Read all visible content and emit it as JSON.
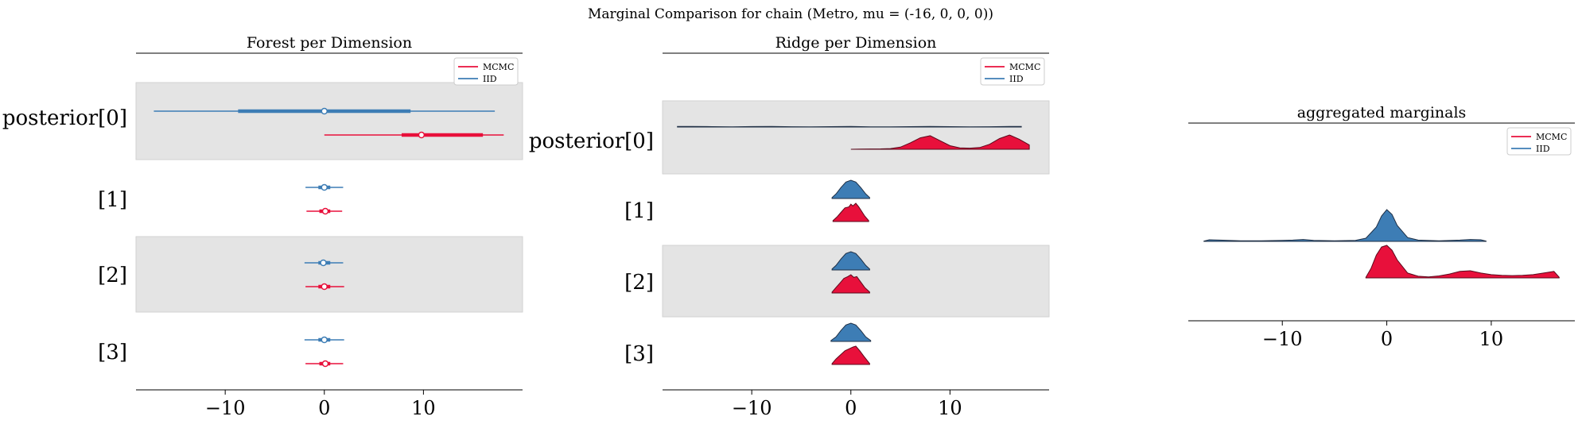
{
  "suptitle": "Marginal Comparison for chain (Metro, mu = (-16, 0, 0, 0))",
  "colors": {
    "mcmc": "#e8103b",
    "iid": "#3d7db5",
    "band": "#e4e4e4",
    "axis": "#000000"
  },
  "chart_data": [
    {
      "type": "forest",
      "title": "Forest per Dimension",
      "xlim": [
        -19,
        20
      ],
      "xticks": [
        -10,
        0,
        10
      ],
      "xtick_labels": [
        "−10",
        "0",
        "10"
      ],
      "legend": {
        "placement": "top-right",
        "entries": [
          "MCMC",
          "IID"
        ]
      },
      "dimensions": [
        {
          "label": "posterior[0]",
          "shaded": true,
          "iid": {
            "lo": -17.2,
            "q25": -8.7,
            "median": 0.0,
            "q75": 8.7,
            "hi": 17.2
          },
          "mcmc": {
            "lo": 0.0,
            "q25": 7.8,
            "median": 9.8,
            "q75": 16.0,
            "hi": 18.1
          }
        },
        {
          "label": "[1]",
          "shaded": false,
          "iid": {
            "lo": -1.9,
            "q25": -0.6,
            "median": 0.0,
            "q75": 0.6,
            "hi": 1.9
          },
          "mcmc": {
            "lo": -1.8,
            "q25": -0.5,
            "median": 0.1,
            "q75": 0.6,
            "hi": 1.8
          }
        },
        {
          "label": "[2]",
          "shaded": true,
          "iid": {
            "lo": -2.0,
            "q25": -0.6,
            "median": -0.1,
            "q75": 0.6,
            "hi": 1.9
          },
          "mcmc": {
            "lo": -1.9,
            "q25": -0.6,
            "median": 0.0,
            "q75": 0.6,
            "hi": 2.0
          }
        },
        {
          "label": "[3]",
          "shaded": false,
          "iid": {
            "lo": -2.0,
            "q25": -0.6,
            "median": 0.0,
            "q75": 0.6,
            "hi": 2.0
          },
          "mcmc": {
            "lo": -1.9,
            "q25": -0.5,
            "median": 0.1,
            "q75": 0.6,
            "hi": 1.9
          }
        }
      ]
    },
    {
      "type": "ridge",
      "title": "Ridge per Dimension",
      "xlim": [
        -19,
        20
      ],
      "xticks": [
        -10,
        0,
        10
      ],
      "xtick_labels": [
        "−10",
        "0",
        "10"
      ],
      "legend": {
        "placement": "top-right",
        "entries": [
          "MCMC",
          "IID"
        ]
      },
      "dimensions": [
        {
          "label": "posterior[0]",
          "shaded": true,
          "iid": {
            "x": [
              -17.5,
              -16,
              -14,
              -12,
              -10,
              -8,
              -6,
              -4,
              -2,
              0,
              2,
              4,
              6,
              8,
              10,
              12,
              14,
              16,
              17.2
            ],
            "d": [
              0.13,
              0.16,
              0.1,
              0.06,
              0.11,
              0.16,
              0.08,
              0.05,
              0.1,
              0.14,
              0.07,
              0.06,
              0.1,
              0.15,
              0.1,
              0.05,
              0.08,
              0.16,
              0.14
            ]
          },
          "mcmc": {
            "x": [
              0,
              1,
              2,
              3,
              4,
              5,
              6,
              7,
              8,
              9,
              10,
              11,
              12,
              13,
              14,
              15,
              16,
              17,
              18
            ],
            "d": [
              0,
              0.01,
              0.02,
              0.03,
              0.05,
              0.15,
              0.45,
              0.8,
              0.95,
              0.6,
              0.25,
              0.1,
              0.08,
              0.12,
              0.35,
              0.75,
              1.0,
              0.7,
              0.3
            ]
          }
        },
        {
          "label": "[1]",
          "shaded": false,
          "iid": {
            "x": [
              -1.9,
              -1.5,
              -1,
              -0.5,
              0,
              0.5,
              1,
              1.5,
              1.9
            ],
            "d": [
              0.05,
              0.25,
              0.6,
              0.9,
              1.0,
              0.9,
              0.6,
              0.25,
              0.05
            ]
          },
          "mcmc": {
            "x": [
              -1.8,
              -1.4,
              -1,
              -0.6,
              -0.2,
              0,
              0.2,
              0.5,
              0.8,
              1.1,
              1.4,
              1.8
            ],
            "d": [
              0.05,
              0.25,
              0.5,
              0.75,
              0.8,
              0.95,
              0.85,
              1.0,
              0.8,
              0.55,
              0.3,
              0.05
            ]
          }
        },
        {
          "label": "[2]",
          "shaded": true,
          "iid": {
            "x": [
              -1.9,
              -1.5,
              -1,
              -0.5,
              0,
              0.5,
              1,
              1.5,
              1.9
            ],
            "d": [
              0.05,
              0.25,
              0.6,
              0.9,
              1.0,
              0.9,
              0.6,
              0.25,
              0.05
            ]
          },
          "mcmc": {
            "x": [
              -1.9,
              -1.5,
              -1.1,
              -0.7,
              -0.3,
              0,
              0.3,
              0.6,
              1,
              1.4,
              1.9
            ],
            "d": [
              0.05,
              0.3,
              0.55,
              0.8,
              0.9,
              1.0,
              0.85,
              0.9,
              0.6,
              0.3,
              0.05
            ]
          }
        },
        {
          "label": "[3]",
          "shaded": false,
          "iid": {
            "x": [
              -2,
              -1.5,
              -1,
              -0.5,
              0,
              0.5,
              1,
              1.5,
              2
            ],
            "d": [
              0.05,
              0.25,
              0.6,
              0.9,
              1.0,
              0.9,
              0.6,
              0.25,
              0.05
            ]
          },
          "mcmc": {
            "x": [
              -1.9,
              -1.5,
              -1,
              -0.6,
              -0.2,
              0.2,
              0.5,
              0.9,
              1.3,
              1.9
            ],
            "d": [
              0.05,
              0.3,
              0.55,
              0.75,
              0.85,
              0.95,
              1.0,
              0.75,
              0.45,
              0.05
            ]
          }
        }
      ]
    },
    {
      "type": "ridge",
      "title": "aggregated marginals",
      "xlim": [
        -19,
        18
      ],
      "xticks": [
        -10,
        0,
        10
      ],
      "xtick_labels": [
        "−10",
        "0",
        "10"
      ],
      "legend": {
        "placement": "top-right",
        "entries": [
          "MCMC",
          "IID"
        ]
      },
      "series": [
        {
          "name": "IID",
          "x": [
            -17.5,
            -17,
            -16,
            -14,
            -12,
            -10,
            -9,
            -8,
            -7,
            -5,
            -3,
            -2,
            -1,
            -0.5,
            0,
            0.5,
            1,
            2,
            3,
            5,
            7,
            8,
            9,
            9.5
          ],
          "d": [
            0.01,
            0.05,
            0.04,
            0.02,
            0.02,
            0.03,
            0.04,
            0.06,
            0.03,
            0.02,
            0.03,
            0.1,
            0.45,
            0.8,
            1.0,
            0.85,
            0.5,
            0.12,
            0.04,
            0.02,
            0.04,
            0.06,
            0.05,
            0.01
          ]
        },
        {
          "name": "MCMC",
          "x": [
            -2,
            -1.5,
            -1,
            -0.5,
            0,
            0.5,
            1,
            2,
            3,
            4,
            5,
            6,
            7,
            8,
            9,
            10,
            11,
            12,
            13,
            14,
            15,
            16,
            16.5
          ],
          "d": [
            0.02,
            0.3,
            0.7,
            0.95,
            1.0,
            0.85,
            0.55,
            0.15,
            0.05,
            0.03,
            0.06,
            0.12,
            0.2,
            0.22,
            0.15,
            0.1,
            0.08,
            0.07,
            0.08,
            0.1,
            0.15,
            0.2,
            0.02
          ]
        }
      ]
    }
  ]
}
